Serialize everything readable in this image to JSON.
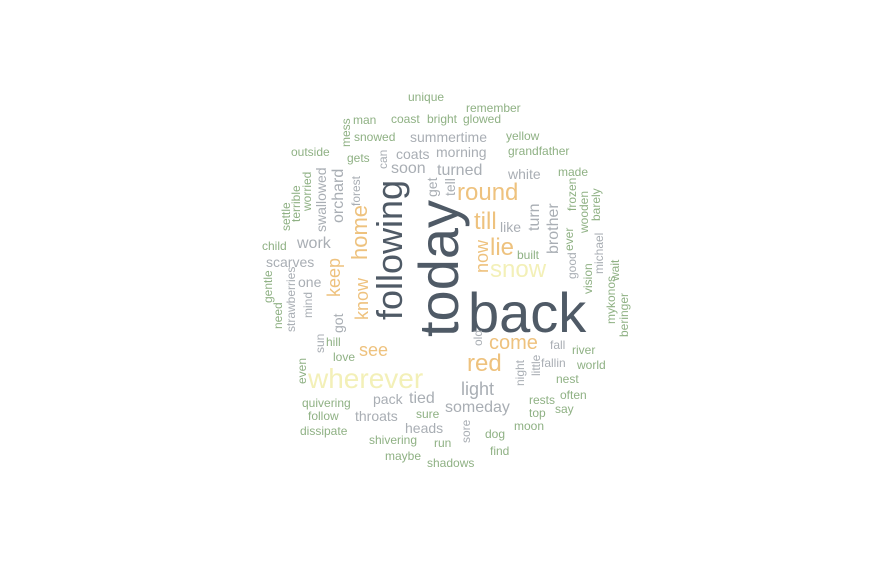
{
  "palette": {
    "dark": "#4f5a66",
    "gray": "#a9aeb4",
    "orange": "#eec27e",
    "yellow": "#f3f0b8",
    "green": "#8fb184"
  },
  "words": [
    {
      "id": "unique",
      "text": "unique",
      "color": "green"
    },
    {
      "id": "remember",
      "text": "remember",
      "color": "green"
    },
    {
      "id": "man",
      "text": "man",
      "color": "green"
    },
    {
      "id": "coast",
      "text": "coast",
      "color": "green"
    },
    {
      "id": "bright",
      "text": "bright",
      "color": "green"
    },
    {
      "id": "glowed",
      "text": "glowed",
      "color": "green"
    },
    {
      "id": "mess",
      "text": "mess",
      "color": "green"
    },
    {
      "id": "snowed",
      "text": "snowed",
      "color": "green"
    },
    {
      "id": "summertime",
      "text": "summertime",
      "color": "gray"
    },
    {
      "id": "yellow",
      "text": "yellow",
      "color": "green"
    },
    {
      "id": "outside",
      "text": "outside",
      "color": "green"
    },
    {
      "id": "gets",
      "text": "gets",
      "color": "green"
    },
    {
      "id": "can",
      "text": "can",
      "color": "gray"
    },
    {
      "id": "coats",
      "text": "coats",
      "color": "gray"
    },
    {
      "id": "morning",
      "text": "morning",
      "color": "gray"
    },
    {
      "id": "grandfather",
      "text": "grandfather",
      "color": "green"
    },
    {
      "id": "forest",
      "text": "forest",
      "color": "gray"
    },
    {
      "id": "soon",
      "text": "soon",
      "color": "gray"
    },
    {
      "id": "turned",
      "text": "turned",
      "color": "gray"
    },
    {
      "id": "white",
      "text": "white",
      "color": "gray"
    },
    {
      "id": "made",
      "text": "made",
      "color": "green"
    },
    {
      "id": "orchard",
      "text": "orchard",
      "color": "gray"
    },
    {
      "id": "get",
      "text": "get",
      "color": "gray"
    },
    {
      "id": "tell",
      "text": "tell",
      "color": "gray"
    },
    {
      "id": "round",
      "text": "round",
      "color": "orange"
    },
    {
      "id": "frozen",
      "text": "frozen",
      "color": "green"
    },
    {
      "id": "worried",
      "text": "worried",
      "color": "green"
    },
    {
      "id": "swallowed",
      "text": "swallowed",
      "color": "gray"
    },
    {
      "id": "terrible",
      "text": "terrible",
      "color": "green"
    },
    {
      "id": "settle",
      "text": "settle",
      "color": "green"
    },
    {
      "id": "wooden",
      "text": "wooden",
      "color": "green"
    },
    {
      "id": "barely",
      "text": "barely",
      "color": "green"
    },
    {
      "id": "till",
      "text": "till",
      "color": "orange"
    },
    {
      "id": "like",
      "text": "like",
      "color": "gray"
    },
    {
      "id": "turn",
      "text": "turn",
      "color": "gray"
    },
    {
      "id": "brother",
      "text": "brother",
      "color": "gray"
    },
    {
      "id": "ever",
      "text": "ever",
      "color": "green"
    },
    {
      "id": "child",
      "text": "child",
      "color": "green"
    },
    {
      "id": "work",
      "text": "work",
      "color": "gray"
    },
    {
      "id": "home",
      "text": "home",
      "color": "orange"
    },
    {
      "id": "following",
      "text": "following",
      "color": "dark"
    },
    {
      "id": "today",
      "text": "today",
      "color": "dark"
    },
    {
      "id": "now",
      "text": "now",
      "color": "orange"
    },
    {
      "id": "lie",
      "text": "lie",
      "color": "orange"
    },
    {
      "id": "built",
      "text": "built",
      "color": "green"
    },
    {
      "id": "michael",
      "text": "michael",
      "color": "gray"
    },
    {
      "id": "vision",
      "text": "vision",
      "color": "green"
    },
    {
      "id": "wait",
      "text": "wait",
      "color": "green"
    },
    {
      "id": "scarves",
      "text": "scarves",
      "color": "gray"
    },
    {
      "id": "keep",
      "text": "keep",
      "color": "orange"
    },
    {
      "id": "snow",
      "text": "snow",
      "color": "yellow"
    },
    {
      "id": "good",
      "text": "good",
      "color": "gray"
    },
    {
      "id": "gentle",
      "text": "gentle",
      "color": "green"
    },
    {
      "id": "one",
      "text": "one",
      "color": "gray"
    },
    {
      "id": "strawberries",
      "text": "strawberries",
      "color": "gray"
    },
    {
      "id": "know",
      "text": "know",
      "color": "orange"
    },
    {
      "id": "need",
      "text": "need",
      "color": "green"
    },
    {
      "id": "mind",
      "text": "mind",
      "color": "gray"
    },
    {
      "id": "back",
      "text": "back",
      "color": "dark"
    },
    {
      "id": "mykonos",
      "text": "mykonos",
      "color": "green"
    },
    {
      "id": "beringer",
      "text": "beringer",
      "color": "green"
    },
    {
      "id": "got",
      "text": "got",
      "color": "gray"
    },
    {
      "id": "hill",
      "text": "hill",
      "color": "green"
    },
    {
      "id": "sun",
      "text": "sun",
      "color": "gray"
    },
    {
      "id": "old",
      "text": "old",
      "color": "gray"
    },
    {
      "id": "come",
      "text": "come",
      "color": "orange"
    },
    {
      "id": "fall",
      "text": "fall",
      "color": "gray"
    },
    {
      "id": "see",
      "text": "see",
      "color": "orange"
    },
    {
      "id": "river",
      "text": "river",
      "color": "green"
    },
    {
      "id": "love",
      "text": "love",
      "color": "green"
    },
    {
      "id": "red",
      "text": "red",
      "color": "orange"
    },
    {
      "id": "fallin",
      "text": "fallin",
      "color": "gray"
    },
    {
      "id": "even",
      "text": "even",
      "color": "green"
    },
    {
      "id": "world",
      "text": "world",
      "color": "green"
    },
    {
      "id": "wherever",
      "text": "wherever",
      "color": "yellow"
    },
    {
      "id": "night",
      "text": "night",
      "color": "gray"
    },
    {
      "id": "little",
      "text": "little",
      "color": "gray"
    },
    {
      "id": "nest",
      "text": "nest",
      "color": "green"
    },
    {
      "id": "light",
      "text": "light",
      "color": "gray"
    },
    {
      "id": "pack",
      "text": "pack",
      "color": "gray"
    },
    {
      "id": "tied",
      "text": "tied",
      "color": "gray"
    },
    {
      "id": "often",
      "text": "often",
      "color": "green"
    },
    {
      "id": "quivering",
      "text": "quivering",
      "color": "green"
    },
    {
      "id": "rests",
      "text": "rests",
      "color": "green"
    },
    {
      "id": "someday",
      "text": "someday",
      "color": "gray"
    },
    {
      "id": "say",
      "text": "say",
      "color": "green"
    },
    {
      "id": "follow",
      "text": "follow",
      "color": "green"
    },
    {
      "id": "throats",
      "text": "throats",
      "color": "gray"
    },
    {
      "id": "sure",
      "text": "sure",
      "color": "green"
    },
    {
      "id": "top",
      "text": "top",
      "color": "green"
    },
    {
      "id": "dissipate",
      "text": "dissipate",
      "color": "green"
    },
    {
      "id": "heads",
      "text": "heads",
      "color": "gray"
    },
    {
      "id": "sore",
      "text": "sore",
      "color": "gray"
    },
    {
      "id": "moon",
      "text": "moon",
      "color": "green"
    },
    {
      "id": "dog",
      "text": "dog",
      "color": "green"
    },
    {
      "id": "shivering",
      "text": "shivering",
      "color": "green"
    },
    {
      "id": "run",
      "text": "run",
      "color": "green"
    },
    {
      "id": "maybe",
      "text": "maybe",
      "color": "green"
    },
    {
      "id": "find",
      "text": "find",
      "color": "green"
    },
    {
      "id": "shadows",
      "text": "shadows",
      "color": "green"
    }
  ]
}
